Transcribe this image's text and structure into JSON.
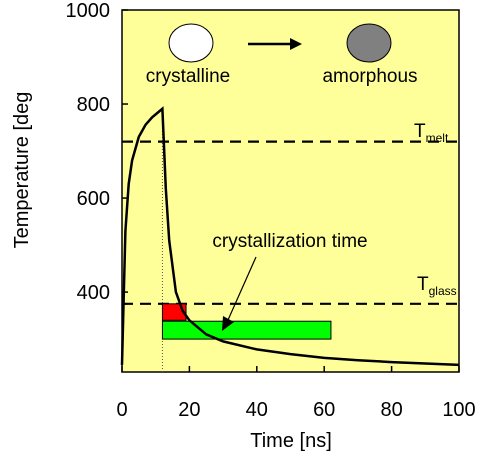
{
  "chart_data": {
    "type": "line",
    "xlabel": "Time [ns]",
    "ylabel": "Temperature [deg",
    "xlim": [
      0,
      100
    ],
    "ylim": [
      230,
      1000
    ],
    "x_ticks": [
      "0",
      "20",
      "40",
      "60",
      "80",
      "100"
    ],
    "y_ticks": [
      "400",
      "600",
      "800",
      "1000"
    ],
    "background_color": "#ffff99",
    "series": [
      {
        "color": "#000000",
        "x": [
          0,
          1,
          2,
          3,
          5,
          7,
          9,
          11,
          12,
          13,
          14,
          16,
          18,
          20,
          25,
          30,
          40,
          50,
          60,
          70,
          80,
          90,
          100
        ],
        "y": [
          245,
          530,
          630,
          680,
          730,
          756,
          772,
          784,
          790,
          620,
          510,
          400,
          360,
          340,
          310,
          295,
          278,
          268,
          260,
          255,
          251,
          248,
          245
        ]
      }
    ],
    "reference_lines": [
      {
        "label_main": "T",
        "label_sub": "melt",
        "y": 720,
        "style": "dashed"
      },
      {
        "label_main": "T",
        "label_sub": "glass",
        "y": 375,
        "style": "dashed"
      }
    ],
    "guide_line": {
      "x": 12,
      "y_from": 230,
      "y_to": 790,
      "style": "dotted"
    },
    "rectangles": [
      {
        "x_from": 12,
        "x_to": 19,
        "y_from": 340,
        "y_to": 375,
        "color": "#ff0000"
      },
      {
        "x_from": 12,
        "x_to": 62,
        "y_from": 300,
        "y_to": 338,
        "color": "#00ff00"
      }
    ],
    "annotations": {
      "crystalline": "crystalline",
      "amorphous": "amorphous",
      "crystallization_time": "crystallization time",
      "crystalline_color": "#ffffff",
      "amorphous_color": "#808080"
    }
  }
}
